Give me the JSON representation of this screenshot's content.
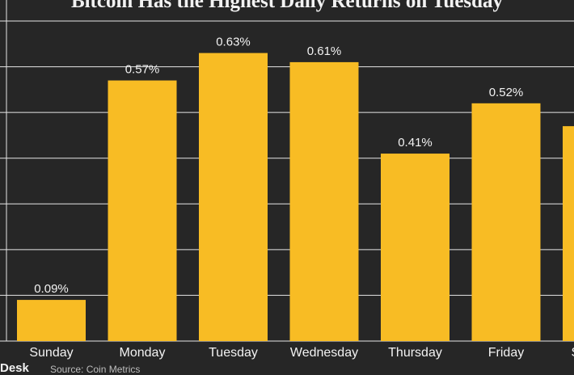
{
  "chart_data": {
    "type": "bar",
    "title": "Bitcoin Has the Highest Daily Returns on Tuesday",
    "categories": [
      "Sunday",
      "Monday",
      "Tuesday",
      "Wednesday",
      "Thursday",
      "Friday",
      "Saturday"
    ],
    "values": [
      0.09,
      0.57,
      0.63,
      0.61,
      0.41,
      0.52,
      0.47
    ],
    "data_labels": [
      "0.09%",
      "0.57%",
      "0.63%",
      "0.61%",
      "0.41%",
      "0.52%",
      ""
    ],
    "ylim": [
      0,
      0.7
    ],
    "grid": true,
    "bar_color": "#f8bc24",
    "background_color": "#262626",
    "grid_color": "#e6e6e6"
  },
  "footer": {
    "brand": "Desk",
    "source": "Source: Coin Metrics"
  }
}
